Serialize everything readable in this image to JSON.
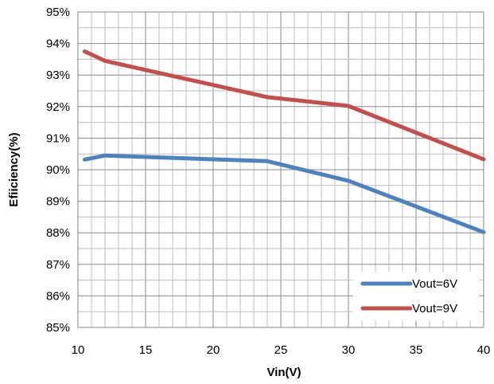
{
  "chart_data": {
    "type": "line",
    "title": "",
    "xlabel": "Vin(V)",
    "ylabel": "Efiiciency(%)",
    "xlim": [
      10,
      40
    ],
    "ylim": [
      85,
      95
    ],
    "x_ticks": [
      10,
      15,
      20,
      25,
      30,
      35,
      40
    ],
    "y_ticks": [
      85,
      86,
      87,
      88,
      89,
      90,
      91,
      92,
      93,
      94,
      95
    ],
    "y_tick_suffix": "%",
    "grid": true,
    "legend_position": "bottom-right",
    "series": [
      {
        "name": "Vout=6V",
        "color": "#4f81bd",
        "points": [
          [
            10.5,
            90.32
          ],
          [
            12,
            90.45
          ],
          [
            24,
            90.27
          ],
          [
            30,
            89.65
          ],
          [
            40,
            88.02
          ]
        ]
      },
      {
        "name": "Vout=9V",
        "color": "#c0504d",
        "points": [
          [
            10.5,
            93.75
          ],
          [
            12,
            93.45
          ],
          [
            24,
            92.3
          ],
          [
            30,
            92.02
          ],
          [
            40,
            90.33
          ]
        ]
      }
    ]
  }
}
